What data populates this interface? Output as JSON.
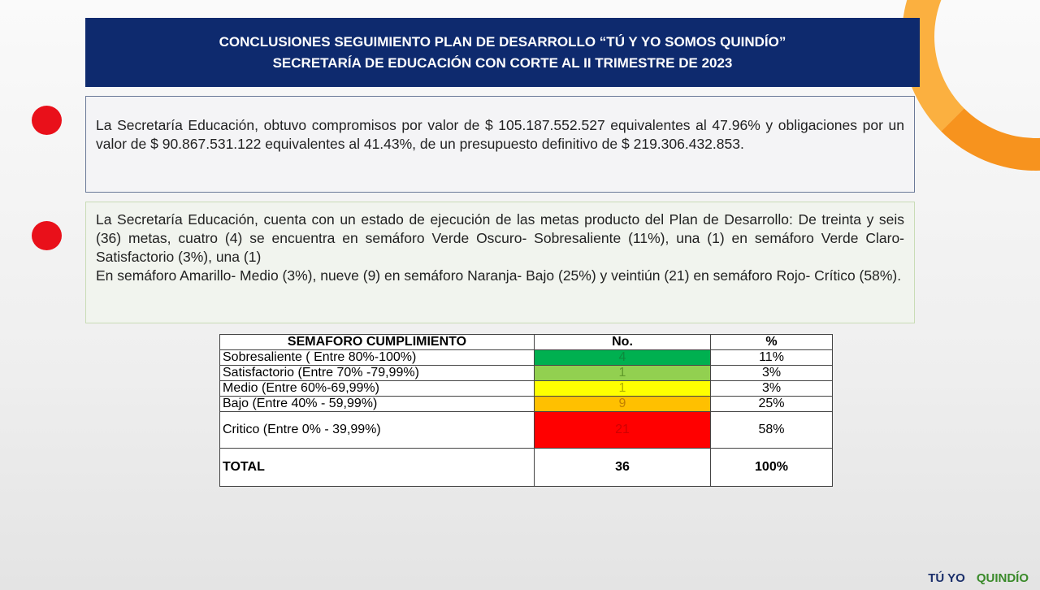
{
  "header": {
    "title_lines": [
      "CONCLUSIONES SEGUIMIENTO PLAN DE DESARROLLO “TÚ Y YO SOMOS QUINDÍO”",
      "SECRETARÍA DE EDUCACIÓN  CON CORTE AL II TRIMESTRE DE 2023"
    ]
  },
  "paragraphs": [
    [
      "La Secretaría Educación, obtuvo compromisos por valor de $ 105.187.552.527 equivalentes al 47.96% y obligaciones por un valor de $ 90.867.531.122 equivalentes al 41.43%, de un presupuesto definitivo de $ 219.306.432.853."
    ],
    [
      "La Secretaría Educación, cuenta con un estado de ejecución de las metas producto del Plan de Desarrollo: De treinta y seis (36) metas, cuatro (4) se encuentra en semáforo Verde Oscuro- Sobresaliente (11%), una (1) en semáforo Verde Claro- Satisfactorio (3%), una (1)",
      "En semáforo Amarillo- Medio (3%), nueve (9) en semáforo Naranja- Bajo (25%) y veintiún (21) en semáforo Rojo- Crítico (58%)."
    ]
  ],
  "table": {
    "header": [
      "SEMAFORO CUMPLIMIENTO",
      "No.",
      "%"
    ],
    "rows": [
      [
        "Sobresaliente  ( Entre 80%-100%)",
        "4",
        "11%"
      ],
      [
        "Satisfactorio (Entre 70% -79,99%)",
        "1",
        "3%"
      ],
      [
        "Medio (Entre 60%-69,99%)",
        "1",
        "3%"
      ],
      [
        "Bajo (Entre 40% - 59,99%)",
        "9",
        "25%"
      ],
      [
        "Critico (Entre 0% - 39,99%)",
        "21",
        "58%"
      ]
    ],
    "total": [
      "TOTAL",
      "36",
      "100%"
    ]
  },
  "logos": [
    "TÚ YO",
    "QUINDÍO"
  ]
}
